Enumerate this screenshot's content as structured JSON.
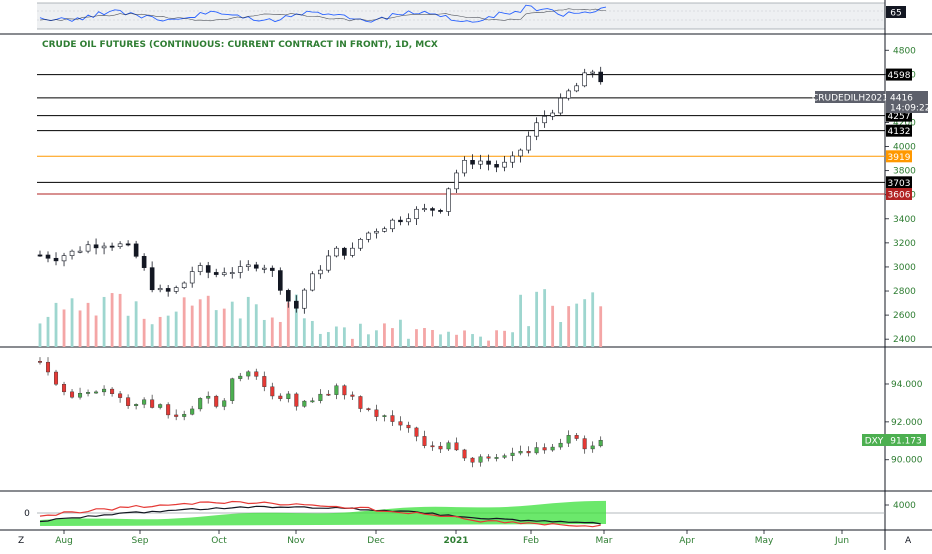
{
  "chart_data": {
    "type": "candlestick",
    "title": "CRUDE OIL FUTURES (CONTINUOUS: CURRENT CONTRACT IN FRONT), 1D, MCX",
    "x_months": [
      "Aug",
      "Sep",
      "Oct",
      "Nov",
      "Dec",
      "2021",
      "Feb",
      "Mar",
      "Apr",
      "May",
      "Jun"
    ],
    "main": {
      "y_ticks": [
        4800,
        4600,
        4400,
        4200,
        4000,
        3800,
        3600,
        3400,
        3200,
        3000,
        2800,
        2600,
        2400
      ],
      "ylim": [
        2335,
        4935
      ],
      "horizontal_levels": [
        {
          "value": 4598,
          "label": "4598",
          "color": "#000000"
        },
        {
          "value": 4404,
          "label": "4404",
          "color": "#000000"
        },
        {
          "value": 4257,
          "label": "4257",
          "color": "#000000"
        },
        {
          "value": 4132,
          "label": "4132",
          "color": "#000000"
        },
        {
          "value": 3919,
          "label": "3919",
          "color": "#ff9800"
        },
        {
          "value": 3703,
          "label": "3703",
          "color": "#000000"
        },
        {
          "value": 3606,
          "label": "3606",
          "color": "#b22222"
        }
      ],
      "price_tag": {
        "symbol": "CRUDEDILH2021",
        "value": "4416",
        "countdown": "14:09:22"
      }
    },
    "dxy": {
      "y_ticks": [
        94,
        92,
        90
      ],
      "y_tick_labels": [
        "94.000",
        "92.000",
        "90.000"
      ],
      "ylim": [
        88.35,
        95.9
      ],
      "symbol": "DXY",
      "last": "91.173"
    },
    "rsi": {
      "level_label": "65"
    },
    "macd": {
      "left_label": "0",
      "right_label": "4000"
    }
  },
  "axes_badge": {
    "left": "Z",
    "right": "A"
  },
  "colors": {
    "up": "#26a69a",
    "down": "#ef5350",
    "axis_text": "#2e7d32",
    "candle_dark": "#131722",
    "dxy_up": "#4caf50",
    "dxy_down": "#e53935"
  }
}
